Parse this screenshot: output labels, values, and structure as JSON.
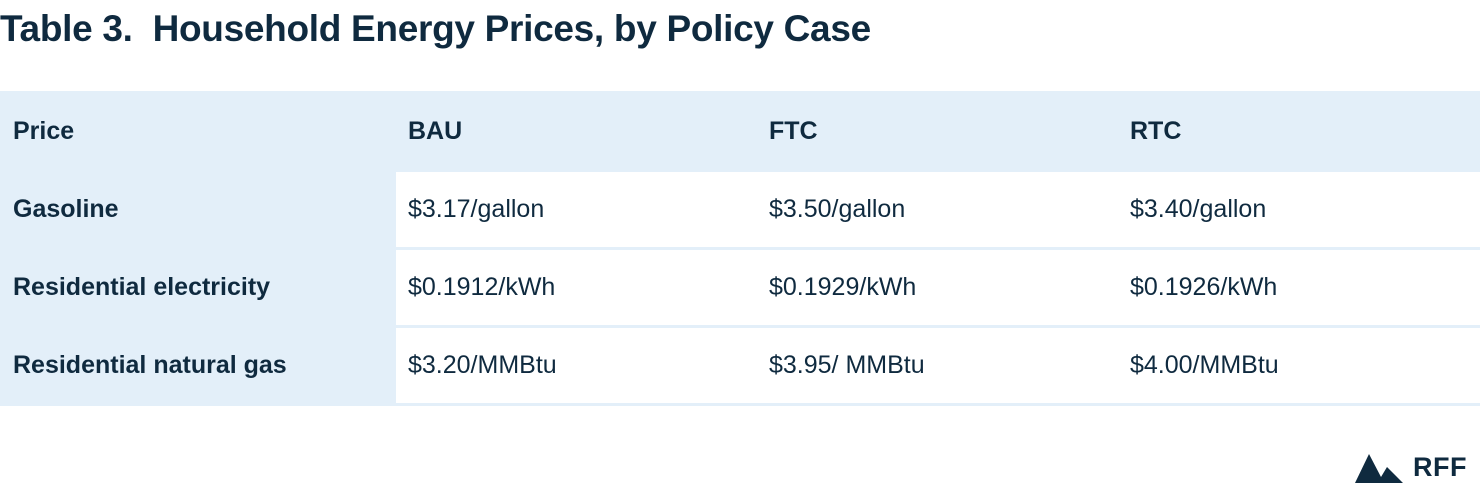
{
  "title": "Table 3.  Household Energy Prices, by Policy Case",
  "table": {
    "headers": [
      "Price",
      "BAU",
      "FTC",
      "RTC"
    ],
    "rows": [
      [
        "Gasoline",
        "$3.17/gallon",
        "$3.50/gallon",
        "$3.40/gallon"
      ],
      [
        "Residential electricity",
        "$0.1912/kWh",
        "$0.1929/kWh",
        "$0.1926/kWh"
      ],
      [
        "Residential natural gas",
        "$3.20/MMBtu",
        "$3.95/ MMBtu",
        "$4.00/MMBtu"
      ]
    ]
  },
  "logo": {
    "text": "RFF",
    "icon": "mountain-logo-icon",
    "color": "#0f2a3f"
  },
  "colors": {
    "header_bg": "#e3eff9",
    "text": "#0f2a3f"
  }
}
